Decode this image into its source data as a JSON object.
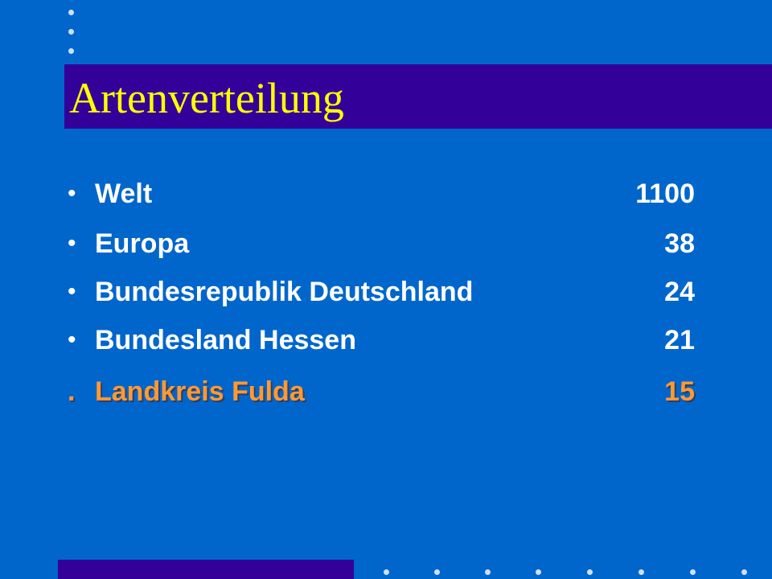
{
  "title": "Artenverteilung",
  "items": [
    {
      "bullet": "•",
      "label": "Welt",
      "value": "1100"
    },
    {
      "bullet": "•",
      "label": "Europa",
      "value": "38"
    },
    {
      "bullet": "•",
      "label": "Bundesrepublik Deutschland",
      "value": "24"
    },
    {
      "bullet": "•",
      "label": "Bundesland Hessen",
      "value": "21"
    },
    {
      "bullet": ".",
      "label": "Landkreis Fulda",
      "value": "15"
    }
  ],
  "colors": {
    "background": "#0066cc",
    "title_bar": "#330099",
    "title_text": "#ffff00",
    "item_text": "#ffffff",
    "highlight_text": "#ff9933"
  }
}
